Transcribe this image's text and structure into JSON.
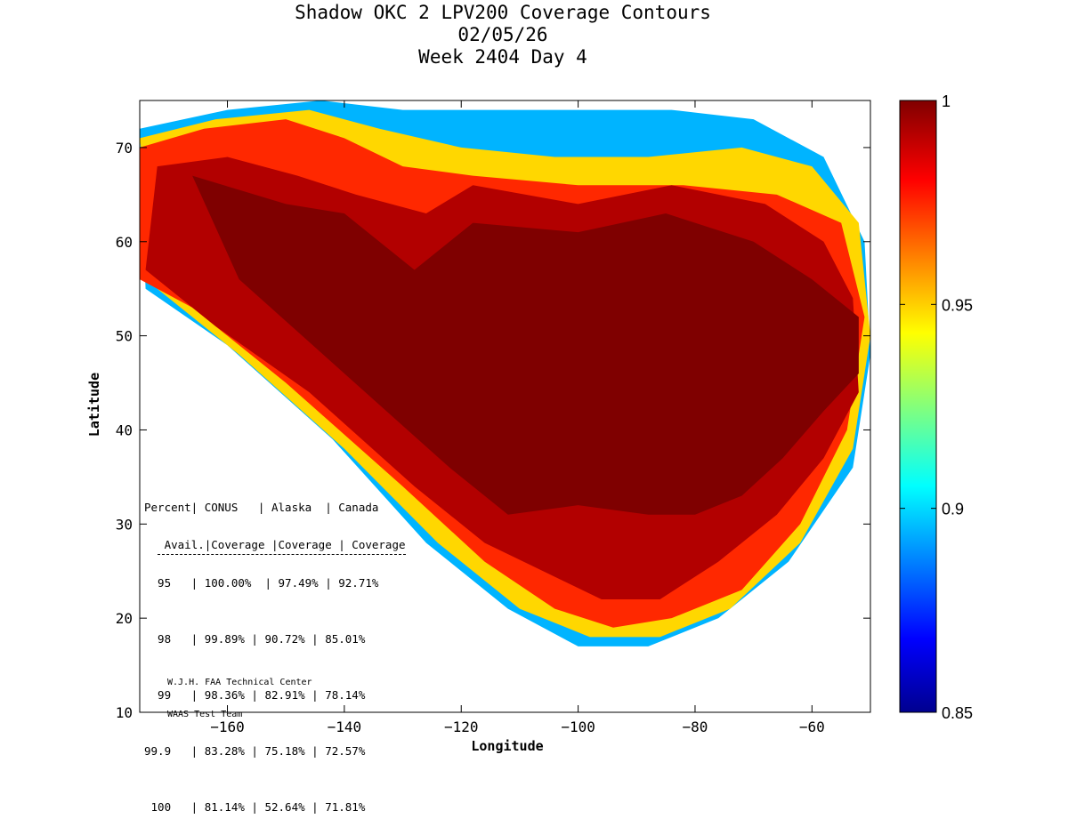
{
  "title": {
    "line1": "Shadow OKC 2 LPV200 Coverage Contours",
    "line2": "02/05/26",
    "line3": "Week 2404 Day 4"
  },
  "chart_data": {
    "type": "heatmap",
    "title": "Shadow OKC 2 LPV200 Coverage Contours",
    "xlabel": "Longitude",
    "ylabel": "Latitude",
    "xlim": [
      -175,
      -50
    ],
    "ylim": [
      10,
      75
    ],
    "xticks": [
      -160,
      -140,
      -120,
      -100,
      -80,
      -60
    ],
    "yticks": [
      10,
      20,
      30,
      40,
      50,
      60,
      70
    ],
    "colorbar": {
      "range": [
        0.85,
        1
      ],
      "ticks": [
        0.85,
        0.9,
        0.95,
        1
      ],
      "colormap": "jet"
    },
    "coverage_levels": [
      {
        "level": 1.0,
        "color": "#7f0000",
        "lon": [
          -166,
          -150,
          -140,
          -128,
          -118,
          -100,
          -85,
          -70,
          -60,
          -52,
          -52,
          -58,
          -65,
          -72,
          -80,
          -88,
          -100,
          -112,
          -122,
          -140,
          -158
        ],
        "lat": [
          67,
          64,
          63,
          57,
          62,
          61,
          63,
          60,
          56,
          52,
          46,
          42,
          37,
          33,
          31,
          31,
          32,
          31,
          36,
          46,
          56
        ]
      },
      {
        "level": 0.99,
        "color": "#b20000",
        "lon": [
          -172,
          -160,
          -148,
          -138,
          -126,
          -118,
          -100,
          -84,
          -68,
          -58,
          -53,
          -52,
          -58,
          -66,
          -76,
          -86,
          -96,
          -106,
          -116,
          -128,
          -146,
          -162,
          -174
        ],
        "lat": [
          68,
          69,
          67,
          65,
          63,
          66,
          64,
          66,
          64,
          60,
          54,
          44,
          37,
          31,
          26,
          22,
          22,
          25,
          28,
          34,
          44,
          51,
          57
        ]
      },
      {
        "level": 0.96,
        "color": "#ff2800",
        "lon": [
          -175,
          -164,
          -150,
          -140,
          -130,
          -118,
          -100,
          -82,
          -66,
          -55,
          -51,
          -54,
          -62,
          -72,
          -84,
          -94,
          -104,
          -116,
          -130,
          -150,
          -166,
          -175
        ],
        "lat": [
          70,
          72,
          73,
          71,
          68,
          67,
          66,
          66,
          65,
          62,
          52,
          40,
          30,
          23,
          20,
          19,
          21,
          26,
          34,
          45,
          53,
          56
        ]
      },
      {
        "level": 0.93,
        "color": "#ffd700",
        "lon": [
          -175,
          -162,
          -146,
          -134,
          -120,
          -104,
          -88,
          -72,
          -60,
          -52,
          -50,
          -53,
          -62,
          -74,
          -86,
          -98,
          -110,
          -124,
          -140,
          -158,
          -172
        ],
        "lat": [
          71,
          73,
          74,
          72,
          70,
          69,
          69,
          70,
          68,
          62,
          50,
          38,
          28,
          21,
          18,
          18,
          21,
          28,
          38,
          48,
          55
        ]
      },
      {
        "level": 0.9,
        "color": "#00b4ff",
        "lon": [
          -175,
          -160,
          -144,
          -130,
          -116,
          -100,
          -84,
          -70,
          -58,
          -51,
          -50,
          -53,
          -64,
          -76,
          -88,
          -100,
          -112,
          -126,
          -142,
          -160,
          -174
        ],
        "lat": [
          72,
          74,
          75,
          74,
          74,
          74,
          74,
          73,
          69,
          60,
          48,
          36,
          26,
          20,
          17,
          17,
          21,
          28,
          39,
          49,
          55
        ]
      }
    ],
    "table": {
      "headers": [
        "Percent Avail.",
        "CONUS Coverage",
        "Alaska Coverage",
        "Canada Coverage"
      ],
      "rows": [
        [
          "95",
          "100.00%",
          "97.49%",
          "92.71%"
        ],
        [
          "98",
          "99.89%",
          "90.72%",
          "85.01%"
        ],
        [
          "99",
          "98.36%",
          "82.91%",
          "78.14%"
        ],
        [
          "99.9",
          "83.28%",
          "75.18%",
          "72.57%"
        ],
        [
          "100",
          "81.14%",
          "52.64%",
          "71.81%"
        ]
      ]
    },
    "annotations": [
      "W.J.H. FAA Technical Center",
      "WAAS Test Team"
    ]
  },
  "stats": {
    "header1": "Percent| CONUS   | Alaska  | Canada",
    "header2": " Avail.|Coverage |Coverage | Coverage",
    "rows": [
      "  95   | 100.00%  | 97.49% | 92.71%",
      "  98   | 99.89% | 90.72% | 85.01%",
      "  99   | 98.36% | 82.91% | 78.14%",
      "99.9   | 83.28% | 75.18% | 72.57%",
      " 100   | 81.14% | 52.64% | 71.81%"
    ]
  },
  "credit": {
    "line1": "W.J.H. FAA Technical Center",
    "line2": "WAAS Test Team"
  }
}
